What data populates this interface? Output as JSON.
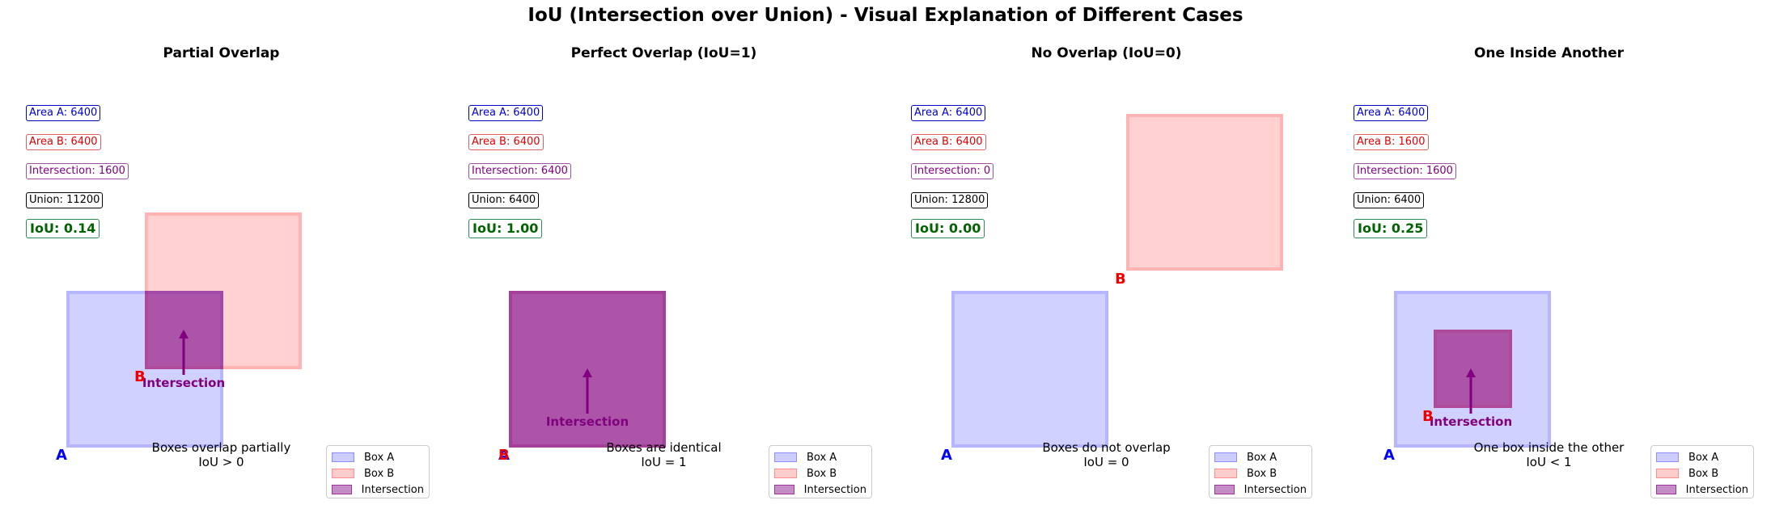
{
  "title": "IoU (Intersection over Union) - Visual Explanation of Different Cases",
  "legend": {
    "box_a": "Box A",
    "box_b": "Box B",
    "intersection": "Intersection"
  },
  "corner_labels": {
    "a": "A",
    "b": "B"
  },
  "intersection_label": "Intersection",
  "colors": {
    "box_a": "#0000ff",
    "box_b": "#ff0000",
    "intersection": "#800080",
    "iou": "#006400"
  },
  "panels": [
    {
      "title": "Partial Overlap",
      "area_a": "Area A: 6400",
      "area_b": "Area B: 6400",
      "intersection": "Intersection: 1600",
      "union": "Union: 11200",
      "iou": "IoU: 0.14",
      "desc_line1": "Boxes overlap partially",
      "desc_line2": "IoU > 0"
    },
    {
      "title": "Perfect Overlap (IoU=1)",
      "area_a": "Area A: 6400",
      "area_b": "Area B: 6400",
      "intersection": "Intersection: 6400",
      "union": "Union: 6400",
      "iou": "IoU: 1.00",
      "desc_line1": "Boxes are identical",
      "desc_line2": "IoU = 1"
    },
    {
      "title": "No Overlap (IoU=0)",
      "area_a": "Area A: 6400",
      "area_b": "Area B: 6400",
      "intersection": "Intersection: 0",
      "union": "Union: 12800",
      "iou": "IoU: 0.00",
      "desc_line1": "Boxes do not overlap",
      "desc_line2": "IoU = 0"
    },
    {
      "title": "One Inside Another",
      "area_a": "Area A: 6400",
      "area_b": "Area B: 1600",
      "intersection": "Intersection: 1600",
      "union": "Union: 6400",
      "iou": "IoU: 0.25",
      "desc_line1": "One box inside the other",
      "desc_line2": "IoU < 1"
    }
  ]
}
